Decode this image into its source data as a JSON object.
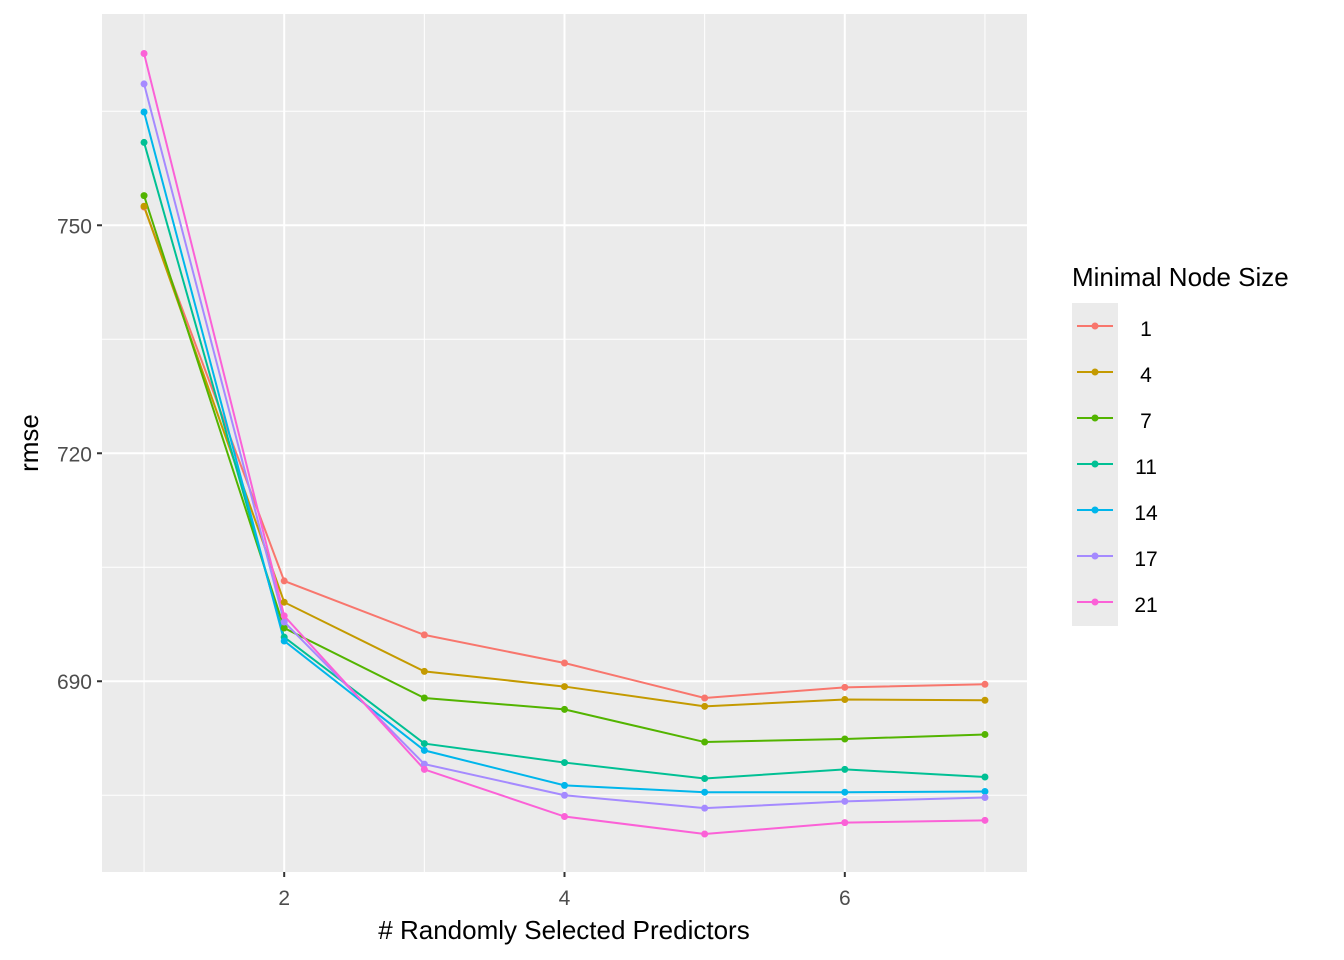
{
  "chart_data": {
    "type": "line",
    "title": "",
    "xlabel": "# Randomly Selected Predictors",
    "ylabel": "rmse",
    "x": [
      1,
      2,
      3,
      4,
      5,
      6,
      7
    ],
    "xlim": [
      0.7,
      7.3
    ],
    "ylim": [
      664.9,
      777.8
    ],
    "xticks": [
      2,
      4,
      6
    ],
    "xtick_labels": [
      "2",
      "4",
      "6"
    ],
    "yticks": [
      690,
      720,
      750
    ],
    "ytick_labels": [
      "690",
      "720",
      "750"
    ],
    "yminor": [
      675,
      705,
      735,
      765
    ],
    "xminor": [
      1,
      3,
      5,
      7
    ],
    "grid": true,
    "legend": {
      "title": "Minimal Node Size",
      "placement": "right"
    },
    "series": [
      {
        "name": "1",
        "color": "#F8766D",
        "values": [
          752.4,
          703.2,
          696.1,
          692.4,
          687.8,
          689.2,
          689.6
        ]
      },
      {
        "name": "4",
        "color": "#C49A00",
        "values": [
          752.5,
          700.4,
          691.3,
          689.3,
          686.7,
          687.6,
          687.5
        ]
      },
      {
        "name": "7",
        "color": "#53B400",
        "values": [
          753.9,
          697.0,
          687.8,
          686.3,
          682.0,
          682.4,
          683.0
        ]
      },
      {
        "name": "11",
        "color": "#00C094",
        "values": [
          760.9,
          695.8,
          681.8,
          679.3,
          677.2,
          678.4,
          677.4
        ]
      },
      {
        "name": "14",
        "color": "#00B6EB",
        "values": [
          764.9,
          695.3,
          680.9,
          676.3,
          675.4,
          675.4,
          675.5
        ]
      },
      {
        "name": "17",
        "color": "#A58AFF",
        "values": [
          768.6,
          697.8,
          679.1,
          675.0,
          673.3,
          674.2,
          674.7
        ]
      },
      {
        "name": "21",
        "color": "#FB61D7",
        "values": [
          772.6,
          698.6,
          678.4,
          672.2,
          669.9,
          671.4,
          671.7
        ]
      }
    ]
  }
}
